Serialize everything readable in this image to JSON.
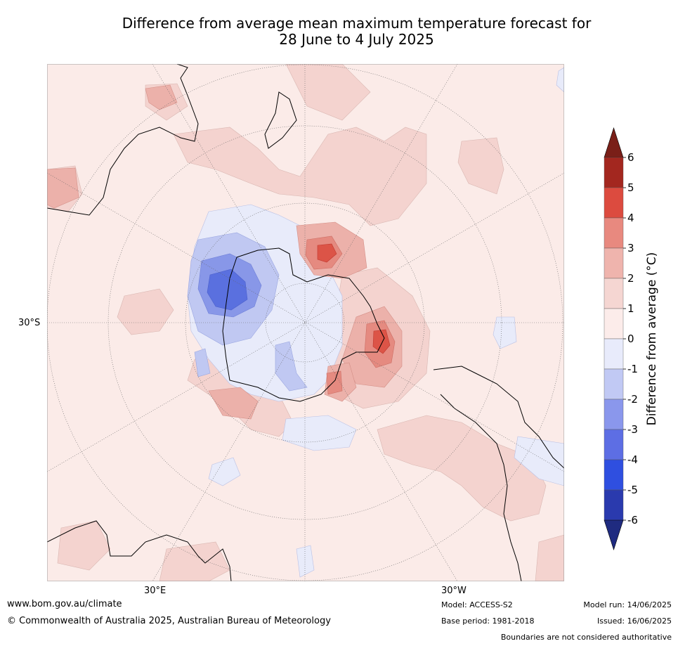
{
  "title": {
    "line1": "Difference from average mean maximum temperature forecast for",
    "line2": "28 June to 4 July 2025"
  },
  "map": {
    "lat_label": "30°S",
    "lon_labels": [
      "30°E",
      "30°W"
    ],
    "colors": {
      "pos_0_1": "#fbebe8",
      "pos_1_2": "#f4d3cf",
      "pos_2_3": "#ecb1aa",
      "pos_3_4": "#e58a80",
      "pos_4_5": "#dc5447",
      "neg_0_1": "#e8ebfa",
      "neg_1_2": "#c0c8f2",
      "neg_2_3": "#8897e8",
      "neg_3_4": "#5a70df",
      "coast": "#000000",
      "grid": "#666666"
    }
  },
  "colorbar": {
    "title": "Difference from average (°C)",
    "ticks": [
      "6",
      "5",
      "4",
      "3",
      "2",
      "1",
      "0",
      "-1",
      "-2",
      "-3",
      "-4",
      "-5",
      "-6"
    ],
    "colors": [
      "#a3271f",
      "#dc4b3f",
      "#e8897f",
      "#efb4ad",
      "#f5d6d2",
      "#fcecea",
      "#e8ebfb",
      "#c1c9f4",
      "#8a97ec",
      "#5d6ee4",
      "#2f4fe0",
      "#2a3aae"
    ],
    "over_color": "#7a1f18",
    "under_color": "#1f2b80"
  },
  "footer": {
    "website": "www.bom.gov.au/climate",
    "copyright": "© Commonwealth of Australia 2025, Australian Bureau of Meteorology",
    "model": "Model: ACCESS-S2",
    "base_period": "Base period: 1981-2018",
    "model_run": "Model run: 14/06/2025",
    "issued": "Issued: 16/06/2025",
    "disclaimer": "Boundaries are not considered authoritative"
  }
}
